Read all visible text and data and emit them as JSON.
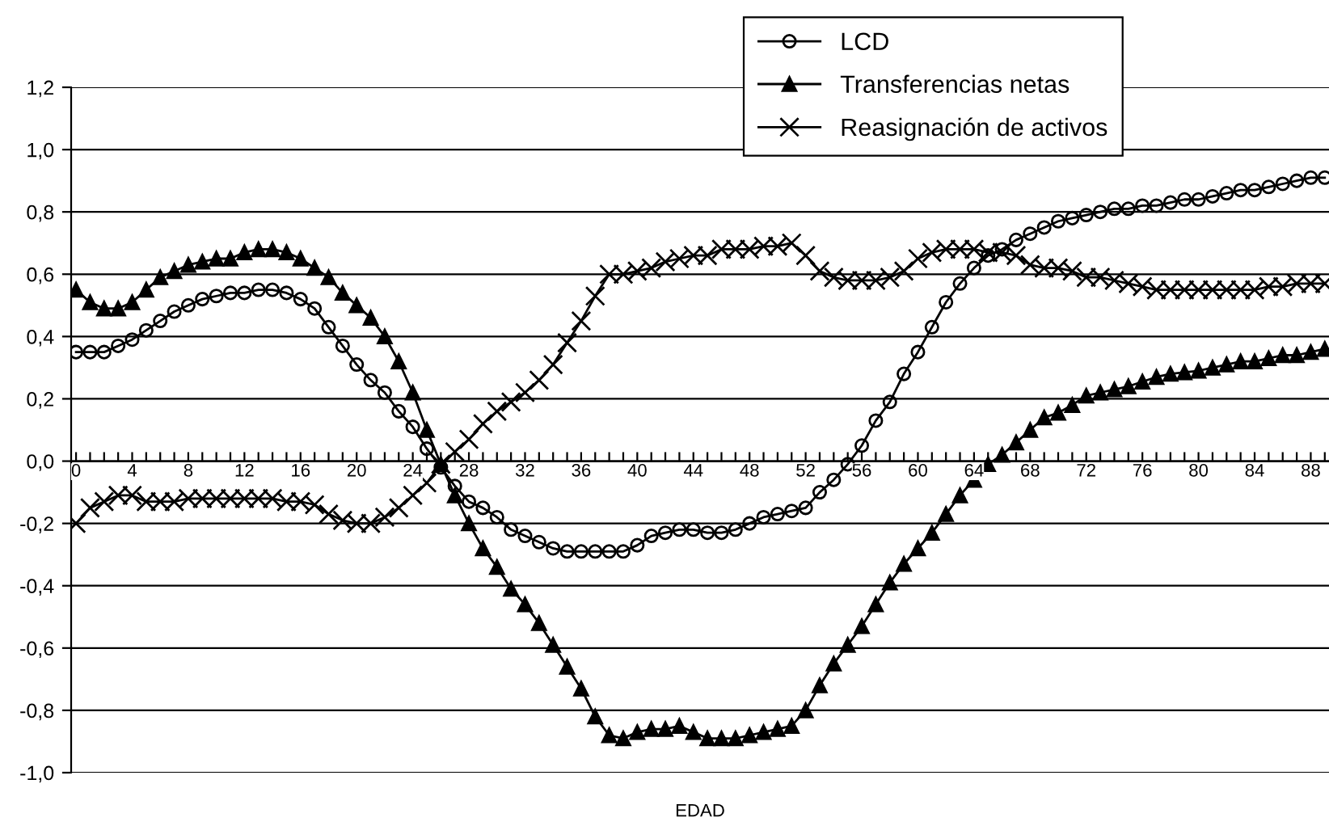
{
  "chart_data": {
    "type": "line",
    "categories": [
      "0",
      null,
      null,
      null,
      "4",
      null,
      null,
      null,
      "8",
      null,
      null,
      null,
      "12",
      null,
      null,
      null,
      "16",
      null,
      null,
      null,
      "20",
      null,
      null,
      null,
      "24",
      null,
      null,
      null,
      "28",
      null,
      null,
      null,
      "32",
      null,
      null,
      null,
      "36",
      null,
      null,
      null,
      "40",
      null,
      null,
      null,
      "44",
      null,
      null,
      null,
      "48",
      null,
      null,
      null,
      "52",
      null,
      null,
      null,
      "56",
      null,
      null,
      null,
      "60",
      null,
      null,
      null,
      "64",
      null,
      null,
      null,
      "68",
      null,
      null,
      null,
      "72",
      null,
      null,
      null,
      "76",
      null,
      null,
      null,
      "80",
      null,
      null,
      null,
      "84",
      null,
      null,
      null,
      "88",
      null
    ],
    "xlabel": "EDAD",
    "series": [
      {
        "name": "LCD",
        "color": "#000000",
        "marker": "circle",
        "values": [
          0.35,
          0.35,
          0.35,
          0.37,
          0.39,
          0.42,
          0.45,
          0.48,
          0.5,
          0.52,
          0.53,
          0.54,
          0.54,
          0.55,
          0.55,
          0.54,
          0.52,
          0.49,
          0.43,
          0.37,
          0.31,
          0.26,
          0.22,
          0.16,
          0.11,
          0.04,
          -0.02,
          -0.08,
          -0.13,
          -0.15,
          -0.18,
          -0.22,
          -0.24,
          -0.26,
          -0.28,
          -0.29,
          -0.29,
          -0.29,
          -0.29,
          -0.29,
          -0.27,
          -0.24,
          -0.23,
          -0.22,
          -0.22,
          -0.23,
          -0.23,
          -0.22,
          -0.2,
          -0.18,
          -0.17,
          -0.16,
          -0.15,
          -0.1,
          -0.06,
          -0.01,
          0.05,
          0.13,
          0.19,
          0.28,
          0.35,
          0.43,
          0.51,
          0.57,
          0.62,
          0.66,
          0.68,
          0.71,
          0.73,
          0.75,
          0.77,
          0.78,
          0.79,
          0.8,
          0.81,
          0.81,
          0.82,
          0.82,
          0.83,
          0.84,
          0.84,
          0.85,
          0.86,
          0.87,
          0.87,
          0.88,
          0.89,
          0.9,
          0.91,
          0.91
        ]
      },
      {
        "name": "Transferencias netas",
        "color": "#000000",
        "marker": "triangle",
        "values": [
          0.55,
          0.51,
          0.49,
          0.49,
          0.51,
          0.55,
          0.59,
          0.61,
          0.63,
          0.64,
          0.65,
          0.65,
          0.67,
          0.68,
          0.68,
          0.67,
          0.65,
          0.62,
          0.59,
          0.54,
          0.5,
          0.46,
          0.4,
          0.32,
          0.22,
          0.1,
          -0.01,
          -0.11,
          -0.2,
          -0.28,
          -0.34,
          -0.41,
          -0.46,
          -0.52,
          -0.59,
          -0.66,
          -0.73,
          -0.82,
          -0.88,
          -0.89,
          -0.87,
          -0.86,
          -0.86,
          -0.85,
          -0.87,
          -0.89,
          -0.89,
          -0.89,
          -0.88,
          -0.87,
          -0.86,
          -0.85,
          -0.8,
          -0.72,
          -0.65,
          -0.59,
          -0.53,
          -0.46,
          -0.39,
          -0.33,
          -0.28,
          -0.23,
          -0.17,
          -0.11,
          -0.06,
          -0.01,
          0.02,
          0.06,
          0.1,
          0.14,
          0.155,
          0.18,
          0.21,
          0.22,
          0.23,
          0.24,
          0.255,
          0.27,
          0.28,
          0.285,
          0.29,
          0.3,
          0.31,
          0.32,
          0.32,
          0.33,
          0.34,
          0.34,
          0.35,
          0.36
        ]
      },
      {
        "name": "Reasignación de activos",
        "color": "#000000",
        "marker": "cross",
        "values": [
          -0.2,
          -0.15,
          -0.13,
          -0.11,
          -0.11,
          -0.13,
          -0.13,
          -0.13,
          -0.12,
          -0.12,
          -0.12,
          -0.12,
          -0.12,
          -0.12,
          -0.12,
          -0.13,
          -0.13,
          -0.14,
          -0.17,
          -0.19,
          -0.2,
          -0.2,
          -0.18,
          -0.15,
          -0.11,
          -0.07,
          -0.01,
          0.03,
          0.07,
          0.12,
          0.16,
          0.19,
          0.22,
          0.26,
          0.31,
          0.38,
          0.45,
          0.53,
          0.6,
          0.6,
          0.61,
          0.62,
          0.64,
          0.65,
          0.66,
          0.66,
          0.68,
          0.68,
          0.68,
          0.69,
          0.69,
          0.7,
          0.66,
          0.61,
          0.59,
          0.58,
          0.58,
          0.58,
          0.59,
          0.61,
          0.65,
          0.67,
          0.68,
          0.68,
          0.68,
          0.67,
          0.67,
          0.66,
          0.63,
          0.62,
          0.62,
          0.61,
          0.59,
          0.59,
          0.58,
          0.57,
          0.56,
          0.55,
          0.55,
          0.55,
          0.55,
          0.55,
          0.55,
          0.55,
          0.55,
          0.56,
          0.56,
          0.57,
          0.57,
          0.57
        ]
      }
    ],
    "ylim": [
      -1.0,
      1.2
    ],
    "yticks": [
      {
        "value": -1.0,
        "label": "-1,0"
      },
      {
        "value": -0.8,
        "label": "-0,8"
      },
      {
        "value": -0.6,
        "label": "-0,6"
      },
      {
        "value": -0.4,
        "label": "-0,4"
      },
      {
        "value": -0.2,
        "label": "-0,2"
      },
      {
        "value": 0.0,
        "label": "0,0"
      },
      {
        "value": 0.2,
        "label": "0,2"
      },
      {
        "value": 0.4,
        "label": "0,4"
      },
      {
        "value": 0.6,
        "label": "0,6"
      },
      {
        "value": 0.8,
        "label": "0,8"
      },
      {
        "value": 1.0,
        "label": "1,0"
      },
      {
        "value": 1.2,
        "label": "1,2"
      }
    ],
    "grid": "y",
    "legend": "top right",
    "line_style": "solid"
  }
}
